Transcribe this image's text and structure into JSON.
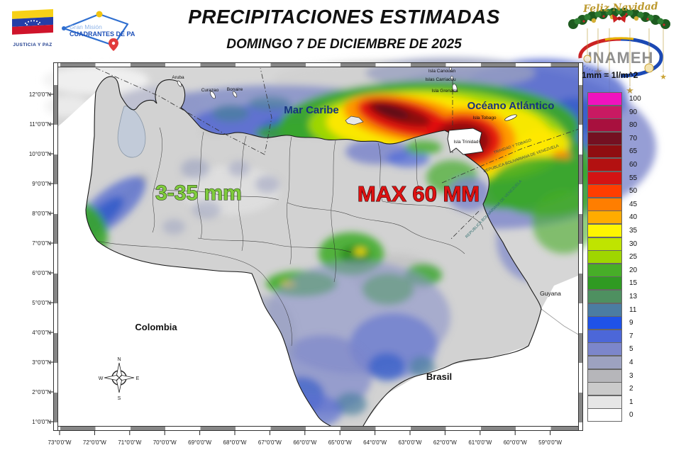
{
  "header": {
    "title": "PRECIPITACIONES ESTIMADAS",
    "subtitle": "DOMINGO 7 DE DICIEMBRE DE 2025",
    "left_logos": {
      "flag_caption": "JUSTICIA Y PAZ",
      "mission_name_line1": "Gran Misión",
      "mission_name_line2": "CUADRANTES DE PAZ"
    },
    "right_logo": {
      "greeting": "Feliz Navidad",
      "agency": "INAMEH"
    }
  },
  "map": {
    "sea_labels": {
      "caribbean": "Mar Caribe",
      "atlantic": "Océano Atlántico"
    },
    "country_labels": {
      "colombia": "Colombia",
      "brasil": "Brasil",
      "guyana": "Guyana"
    },
    "island_labels": {
      "aruba": "Aruba",
      "curazao": "Curazao",
      "bonaire": "Bonaire",
      "canouan": "Isla Canouan",
      "carriacou": "Islas Carriacou",
      "grenada": "Isla Grenada",
      "tobago": "Isla Tobago",
      "trinidad": "Isla Trinidad"
    },
    "boundary_labels": {
      "trinidad_tobago": "TRINIDAD Y TOBAGO",
      "venezuela": "REPUBLICA BOLIVARIANA DE VENEZUELA",
      "venezuela2": "REPUBLICA BOLIVARIANA DE VENEZUELA"
    },
    "annotations": {
      "range_text": "3-35 mm",
      "range_color": "#7FCC3C",
      "max_text": "MAX 60 MM",
      "max_color": "#DD1111"
    },
    "compass": {
      "n": "N",
      "s": "S",
      "e": "E",
      "w": "W"
    },
    "lat_ticks": [
      "12°0'0\"N",
      "11°0'0\"N",
      "10°0'0\"N",
      "9°0'0\"N",
      "8°0'0\"N",
      "7°0'0\"N",
      "6°0'0\"N",
      "5°0'0\"N",
      "4°0'0\"N",
      "3°0'0\"N",
      "2°0'0\"N",
      "1°0'0\"N"
    ],
    "lon_ticks": [
      "73°0'0\"W",
      "72°0'0\"W",
      "71°0'0\"W",
      "70°0'0\"W",
      "69°0'0\"W",
      "68°0'0\"W",
      "67°0'0\"W",
      "66°0'0\"W",
      "65°0'0\"W",
      "64°0'0\"W",
      "63°0'0\"W",
      "62°0'0\"W",
      "61°0'0\"W",
      "60°0'0\"W",
      "59°0'0\"W"
    ]
  },
  "legend": {
    "unit_note": "1mm = 1l/m^2",
    "entries": [
      {
        "value": "100",
        "color": "#F013BE"
      },
      {
        "value": "90",
        "color": "#C91A62"
      },
      {
        "value": "80",
        "color": "#A8103E"
      },
      {
        "value": "70",
        "color": "#741021"
      },
      {
        "value": "65",
        "color": "#8F0D10"
      },
      {
        "value": "60",
        "color": "#B31111"
      },
      {
        "value": "55",
        "color": "#D31414"
      },
      {
        "value": "50",
        "color": "#FF3D00"
      },
      {
        "value": "45",
        "color": "#FF7E00"
      },
      {
        "value": "40",
        "color": "#FFAC00"
      },
      {
        "value": "35",
        "color": "#FFF500"
      },
      {
        "value": "30",
        "color": "#BFE400"
      },
      {
        "value": "25",
        "color": "#9FD600"
      },
      {
        "value": "20",
        "color": "#47AE28"
      },
      {
        "value": "15",
        "color": "#2F9A22"
      },
      {
        "value": "13",
        "color": "#4E9060"
      },
      {
        "value": "11",
        "color": "#4B7CA2"
      },
      {
        "value": "9",
        "color": "#1F52E8"
      },
      {
        "value": "7",
        "color": "#4C67D8"
      },
      {
        "value": "5",
        "color": "#7C86CB"
      },
      {
        "value": "4",
        "color": "#9DA2C0"
      },
      {
        "value": "3",
        "color": "#B6B6BA"
      },
      {
        "value": "2",
        "color": "#CACACA"
      },
      {
        "value": "1",
        "color": "#E6E6E6"
      },
      {
        "value": "0",
        "color": "#FFFFFF"
      }
    ]
  }
}
